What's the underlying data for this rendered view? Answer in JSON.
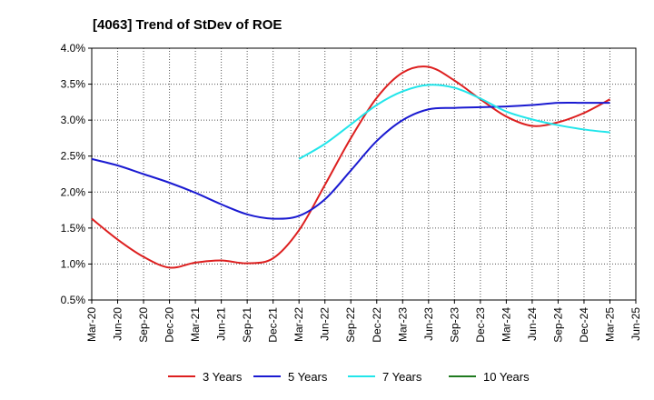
{
  "chart_data": {
    "type": "line",
    "title": "[4063]  Trend of StDev of ROE",
    "xlabel": "",
    "ylabel": "",
    "ylim": [
      0.5,
      4.0
    ],
    "y_ticks": [
      "0.5%",
      "1.0%",
      "1.5%",
      "2.0%",
      "2.5%",
      "3.0%",
      "3.5%",
      "4.0%"
    ],
    "y_tick_values": [
      0.5,
      1.0,
      1.5,
      2.0,
      2.5,
      3.0,
      3.5,
      4.0
    ],
    "categories": [
      "Mar-20",
      "Jun-20",
      "Sep-20",
      "Dec-20",
      "Mar-21",
      "Jun-21",
      "Sep-21",
      "Dec-21",
      "Mar-22",
      "Jun-22",
      "Sep-22",
      "Dec-22",
      "Mar-23",
      "Jun-23",
      "Sep-23",
      "Dec-23",
      "Mar-24",
      "Jun-24",
      "Sep-24",
      "Dec-24",
      "Mar-25",
      "Jun-25"
    ],
    "grid": true,
    "legend_position": "bottom",
    "series": [
      {
        "name": "3 Years",
        "color": "#dd1f1f",
        "values": [
          1.63,
          1.34,
          1.1,
          0.95,
          1.02,
          1.05,
          1.01,
          1.08,
          1.47,
          2.1,
          2.75,
          3.31,
          3.66,
          3.74,
          3.55,
          3.29,
          3.05,
          2.92,
          2.97,
          3.1,
          3.29,
          null
        ]
      },
      {
        "name": "5 Years",
        "color": "#1a1ad1",
        "values": [
          2.46,
          2.37,
          2.25,
          2.13,
          1.99,
          1.83,
          1.69,
          1.63,
          1.67,
          1.9,
          2.3,
          2.71,
          3.0,
          3.15,
          3.17,
          3.18,
          3.19,
          3.21,
          3.24,
          3.24,
          3.24,
          null
        ]
      },
      {
        "name": "7 Years",
        "color": "#22e5ea",
        "values": [
          null,
          null,
          null,
          null,
          null,
          null,
          null,
          null,
          2.46,
          2.67,
          2.94,
          3.21,
          3.4,
          3.49,
          3.45,
          3.3,
          3.12,
          3.01,
          2.93,
          2.87,
          2.83,
          null
        ]
      },
      {
        "name": "10 Years",
        "color": "#1f7a1f",
        "values": [
          null,
          null,
          null,
          null,
          null,
          null,
          null,
          null,
          null,
          null,
          null,
          null,
          null,
          null,
          null,
          null,
          null,
          null,
          null,
          null,
          null,
          null
        ]
      }
    ]
  }
}
